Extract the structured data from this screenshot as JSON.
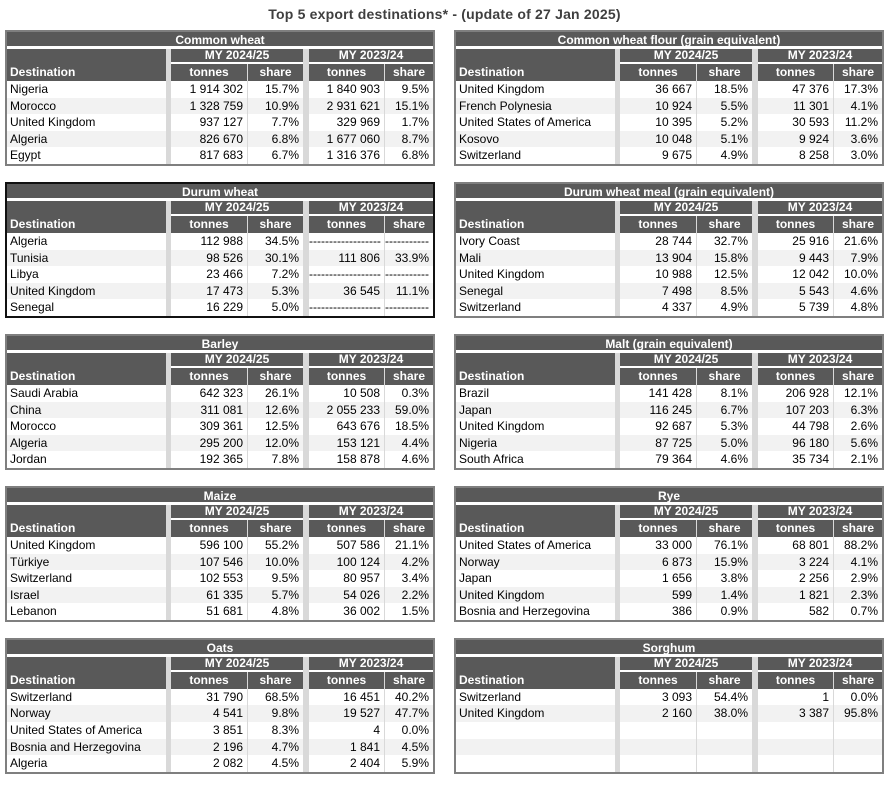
{
  "page_title": "Top 5 export destinations* - (update of 27 Jan 2025)",
  "colors": {
    "header_bg": "#595959",
    "row_stripe": "#f2f2f2",
    "column_gutter": "#d9d9d9",
    "table_border": "#7f7f7f",
    "emphasized_table_border": "#111111",
    "title_text": "#3f3f3f"
  },
  "column_headers": {
    "destination": "Destination",
    "my_current": "MY 2024/25",
    "my_previous": "MY 2023/24",
    "tonnes": "tonnes",
    "share": "share"
  },
  "tables": [
    {
      "title": "Common wheat",
      "emphasized": false,
      "rows": [
        {
          "destination": "Nigeria",
          "t1": "1 914 302",
          "s1": "15.7%",
          "t2": "1 840 903",
          "s2": "9.5%"
        },
        {
          "destination": "Morocco",
          "t1": "1 328 759",
          "s1": "10.9%",
          "t2": "2 931 621",
          "s2": "15.1%"
        },
        {
          "destination": "United Kingdom",
          "t1": "937 127",
          "s1": "7.7%",
          "t2": "329 969",
          "s2": "1.7%"
        },
        {
          "destination": "Algeria",
          "t1": "826 670",
          "s1": "6.8%",
          "t2": "1 677 060",
          "s2": "8.7%"
        },
        {
          "destination": "Egypt",
          "t1": "817 683",
          "s1": "6.7%",
          "t2": "1 316 376",
          "s2": "6.8%"
        }
      ]
    },
    {
      "title": "Common wheat flour (grain equivalent)",
      "emphasized": false,
      "rows": [
        {
          "destination": "United Kingdom",
          "t1": "36 667",
          "s1": "18.5%",
          "t2": "47 376",
          "s2": "17.3%"
        },
        {
          "destination": "French Polynesia",
          "t1": "10 924",
          "s1": "5.5%",
          "t2": "11 301",
          "s2": "4.1%"
        },
        {
          "destination": "United States of America",
          "t1": "10 395",
          "s1": "5.2%",
          "t2": "30 593",
          "s2": "11.2%"
        },
        {
          "destination": "Kosovo",
          "t1": "10 048",
          "s1": "5.1%",
          "t2": "9 924",
          "s2": "3.6%"
        },
        {
          "destination": "Switzerland",
          "t1": "9 675",
          "s1": "4.9%",
          "t2": "8 258",
          "s2": "3.0%"
        }
      ]
    },
    {
      "title": "Durum wheat",
      "emphasized": true,
      "rows": [
        {
          "destination": "Algeria",
          "t1": "112 988",
          "s1": "34.5%",
          "t2": "------------------",
          "s2": "-----------"
        },
        {
          "destination": "Tunisia",
          "t1": "98 526",
          "s1": "30.1%",
          "t2": "111 806",
          "s2": "33.9%"
        },
        {
          "destination": "Libya",
          "t1": "23 466",
          "s1": "7.2%",
          "t2": "------------------",
          "s2": "-----------"
        },
        {
          "destination": "United Kingdom",
          "t1": "17 473",
          "s1": "5.3%",
          "t2": "36 545",
          "s2": "11.1%"
        },
        {
          "destination": "Senegal",
          "t1": "16 229",
          "s1": "5.0%",
          "t2": "------------------",
          "s2": "-----------"
        }
      ]
    },
    {
      "title": "Durum wheat meal (grain equivalent)",
      "emphasized": false,
      "rows": [
        {
          "destination": "Ivory Coast",
          "t1": "28 744",
          "s1": "32.7%",
          "t2": "25 916",
          "s2": "21.6%"
        },
        {
          "destination": "Mali",
          "t1": "13 904",
          "s1": "15.8%",
          "t2": "9 443",
          "s2": "7.9%"
        },
        {
          "destination": "United Kingdom",
          "t1": "10 988",
          "s1": "12.5%",
          "t2": "12 042",
          "s2": "10.0%"
        },
        {
          "destination": "Senegal",
          "t1": "7 498",
          "s1": "8.5%",
          "t2": "5 543",
          "s2": "4.6%"
        },
        {
          "destination": "Switzerland",
          "t1": "4 337",
          "s1": "4.9%",
          "t2": "5 739",
          "s2": "4.8%"
        }
      ]
    },
    {
      "title": "Barley",
      "emphasized": false,
      "rows": [
        {
          "destination": "Saudi Arabia",
          "t1": "642 323",
          "s1": "26.1%",
          "t2": "10 508",
          "s2": "0.3%"
        },
        {
          "destination": "China",
          "t1": "311 081",
          "s1": "12.6%",
          "t2": "2 055 233",
          "s2": "59.0%"
        },
        {
          "destination": "Morocco",
          "t1": "309 361",
          "s1": "12.5%",
          "t2": "643 676",
          "s2": "18.5%"
        },
        {
          "destination": "Algeria",
          "t1": "295 200",
          "s1": "12.0%",
          "t2": "153 121",
          "s2": "4.4%"
        },
        {
          "destination": "Jordan",
          "t1": "192 365",
          "s1": "7.8%",
          "t2": "158 878",
          "s2": "4.6%"
        }
      ]
    },
    {
      "title": "Malt (grain equivalent)",
      "emphasized": false,
      "rows": [
        {
          "destination": "Brazil",
          "t1": "141 428",
          "s1": "8.1%",
          "t2": "206 928",
          "s2": "12.1%"
        },
        {
          "destination": "Japan",
          "t1": "116 245",
          "s1": "6.7%",
          "t2": "107 203",
          "s2": "6.3%"
        },
        {
          "destination": "United Kingdom",
          "t1": "92 687",
          "s1": "5.3%",
          "t2": "44 798",
          "s2": "2.6%"
        },
        {
          "destination": "Nigeria",
          "t1": "87 725",
          "s1": "5.0%",
          "t2": "96 180",
          "s2": "5.6%"
        },
        {
          "destination": "South Africa",
          "t1": "79 364",
          "s1": "4.6%",
          "t2": "35 734",
          "s2": "2.1%"
        }
      ]
    },
    {
      "title": "Maize",
      "emphasized": false,
      "rows": [
        {
          "destination": "United Kingdom",
          "t1": "596 100",
          "s1": "55.2%",
          "t2": "507 586",
          "s2": "21.1%"
        },
        {
          "destination": "Türkiye",
          "t1": "107 546",
          "s1": "10.0%",
          "t2": "100 124",
          "s2": "4.2%"
        },
        {
          "destination": "Switzerland",
          "t1": "102 553",
          "s1": "9.5%",
          "t2": "80 957",
          "s2": "3.4%"
        },
        {
          "destination": "Israel",
          "t1": "61 335",
          "s1": "5.7%",
          "t2": "54 026",
          "s2": "2.2%"
        },
        {
          "destination": "Lebanon",
          "t1": "51 681",
          "s1": "4.8%",
          "t2": "36 002",
          "s2": "1.5%"
        }
      ]
    },
    {
      "title": "Rye",
      "emphasized": false,
      "rows": [
        {
          "destination": "United States of America",
          "t1": "33 000",
          "s1": "76.1%",
          "t2": "68 801",
          "s2": "88.2%"
        },
        {
          "destination": "Norway",
          "t1": "6 873",
          "s1": "15.9%",
          "t2": "3 224",
          "s2": "4.1%"
        },
        {
          "destination": "Japan",
          "t1": "1 656",
          "s1": "3.8%",
          "t2": "2 256",
          "s2": "2.9%"
        },
        {
          "destination": "United Kingdom",
          "t1": "599",
          "s1": "1.4%",
          "t2": "1 821",
          "s2": "2.3%"
        },
        {
          "destination": "Bosnia and Herzegovina",
          "t1": "386",
          "s1": "0.9%",
          "t2": "582",
          "s2": "0.7%"
        }
      ]
    },
    {
      "title": "Oats",
      "emphasized": false,
      "rows": [
        {
          "destination": "Switzerland",
          "t1": "31 790",
          "s1": "68.5%",
          "t2": "16 451",
          "s2": "40.2%"
        },
        {
          "destination": "Norway",
          "t1": "4 541",
          "s1": "9.8%",
          "t2": "19 527",
          "s2": "47.7%"
        },
        {
          "destination": "United States of America",
          "t1": "3 851",
          "s1": "8.3%",
          "t2": "4",
          "s2": "0.0%"
        },
        {
          "destination": "Bosnia and Herzegovina",
          "t1": "2 196",
          "s1": "4.7%",
          "t2": "1 841",
          "s2": "4.5%"
        },
        {
          "destination": "Algeria",
          "t1": "2 082",
          "s1": "4.5%",
          "t2": "2 404",
          "s2": "5.9%"
        }
      ]
    },
    {
      "title": "Sorghum",
      "emphasized": false,
      "rows": [
        {
          "destination": "Switzerland",
          "t1": "3 093",
          "s1": "54.4%",
          "t2": "1",
          "s2": "0.0%"
        },
        {
          "destination": "United Kingdom",
          "t1": "2 160",
          "s1": "38.0%",
          "t2": "3 387",
          "s2": "95.8%"
        },
        {
          "destination": "",
          "t1": "",
          "s1": "",
          "t2": "",
          "s2": ""
        },
        {
          "destination": "",
          "t1": "",
          "s1": "",
          "t2": "",
          "s2": ""
        },
        {
          "destination": "",
          "t1": "",
          "s1": "",
          "t2": "",
          "s2": ""
        }
      ]
    }
  ]
}
